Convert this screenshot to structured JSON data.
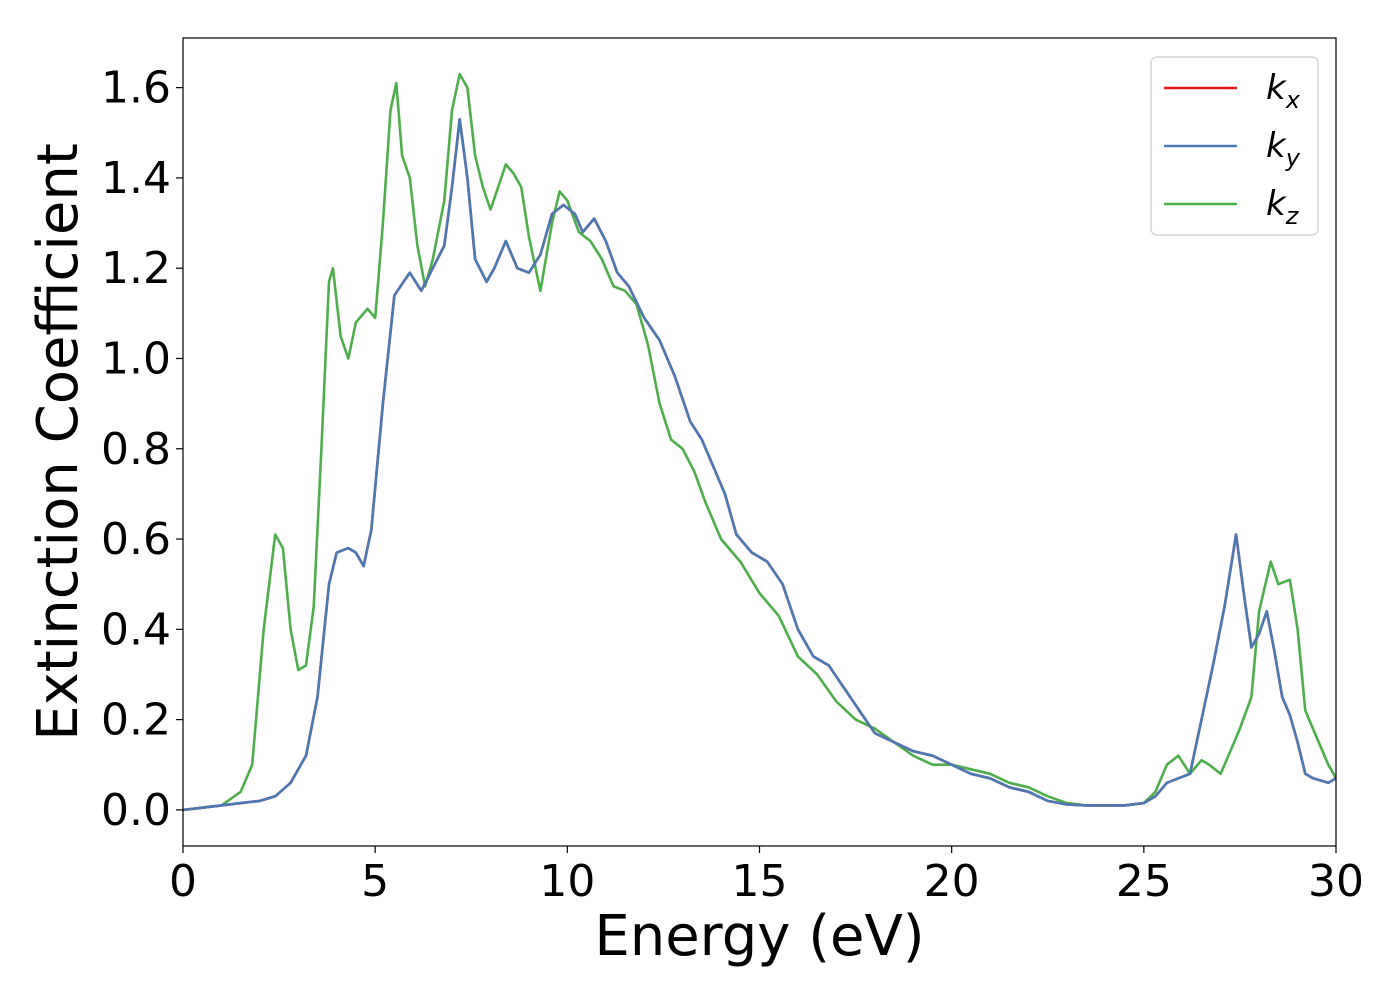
{
  "chart_data": {
    "type": "line",
    "title": "",
    "xlabel": "Energy (eV)",
    "ylabel": "Extinction Coefficient",
    "xlim": [
      0,
      30
    ],
    "ylim": [
      -0.08,
      1.71
    ],
    "xticks": [
      0,
      5,
      10,
      15,
      20,
      25,
      30
    ],
    "xtick_labels": [
      "0",
      "5",
      "10",
      "15",
      "20",
      "25",
      "30"
    ],
    "yticks": [
      0.0,
      0.2,
      0.4,
      0.6,
      0.8,
      1.0,
      1.2,
      1.4,
      1.6
    ],
    "ytick_labels": [
      "0.0",
      "0.2",
      "0.4",
      "0.6",
      "0.8",
      "1.0",
      "1.2",
      "1.4",
      "1.6"
    ],
    "grid": false,
    "legend_position": "top-right",
    "series": [
      {
        "name": "k_x",
        "label_base": "k",
        "label_sub": "x",
        "color": "#e41a1c",
        "x": [
          0,
          1,
          1.5,
          2,
          2.4,
          2.8,
          3.2,
          3.5,
          3.8,
          4.0,
          4.3,
          4.5,
          4.7,
          4.9,
          5.2,
          5.5,
          5.9,
          6.2,
          6.5,
          6.8,
          7.0,
          7.2,
          7.4,
          7.6,
          7.9,
          8.1,
          8.4,
          8.7,
          9.0,
          9.3,
          9.6,
          9.9,
          10.2,
          10.4,
          10.7,
          11.0,
          11.3,
          11.6,
          12.0,
          12.4,
          12.8,
          13.2,
          13.5,
          13.8,
          14.1,
          14.4,
          14.8,
          15.2,
          15.6,
          16.0,
          16.4,
          16.8,
          17.2,
          17.6,
          18.0,
          18.5,
          19.0,
          19.5,
          20.0,
          20.5,
          21.0,
          21.5,
          22.0,
          22.5,
          23.0,
          23.5,
          24.0,
          24.5,
          25.0,
          25.3,
          25.6,
          25.9,
          26.2,
          26.5,
          26.8,
          27.1,
          27.4,
          27.6,
          27.8,
          28.0,
          28.2,
          28.4,
          28.6,
          28.8,
          29.0,
          29.2,
          29.4,
          29.6,
          29.8,
          30
        ],
        "values": [
          0.0,
          0.01,
          0.015,
          0.02,
          0.03,
          0.06,
          0.12,
          0.25,
          0.5,
          0.57,
          0.58,
          0.57,
          0.54,
          0.62,
          0.9,
          1.14,
          1.19,
          1.15,
          1.2,
          1.25,
          1.38,
          1.53,
          1.4,
          1.22,
          1.17,
          1.2,
          1.26,
          1.2,
          1.19,
          1.23,
          1.32,
          1.34,
          1.32,
          1.28,
          1.31,
          1.26,
          1.19,
          1.16,
          1.09,
          1.04,
          0.96,
          0.86,
          0.82,
          0.76,
          0.7,
          0.61,
          0.57,
          0.55,
          0.5,
          0.4,
          0.34,
          0.32,
          0.27,
          0.22,
          0.17,
          0.15,
          0.13,
          0.12,
          0.1,
          0.08,
          0.07,
          0.05,
          0.04,
          0.02,
          0.012,
          0.01,
          0.01,
          0.01,
          0.015,
          0.03,
          0.06,
          0.07,
          0.08,
          0.2,
          0.32,
          0.45,
          0.61,
          0.48,
          0.36,
          0.39,
          0.44,
          0.35,
          0.25,
          0.21,
          0.15,
          0.08,
          0.07,
          0.065,
          0.06,
          0.07
        ]
      },
      {
        "name": "k_y",
        "label_base": "k",
        "label_sub": "y",
        "color": "#4a7ab5",
        "x": [
          0,
          1,
          1.5,
          2,
          2.4,
          2.8,
          3.2,
          3.5,
          3.8,
          4.0,
          4.3,
          4.5,
          4.7,
          4.9,
          5.2,
          5.5,
          5.9,
          6.2,
          6.5,
          6.8,
          7.0,
          7.2,
          7.4,
          7.6,
          7.9,
          8.1,
          8.4,
          8.7,
          9.0,
          9.3,
          9.6,
          9.9,
          10.2,
          10.4,
          10.7,
          11.0,
          11.3,
          11.6,
          12.0,
          12.4,
          12.8,
          13.2,
          13.5,
          13.8,
          14.1,
          14.4,
          14.8,
          15.2,
          15.6,
          16.0,
          16.4,
          16.8,
          17.2,
          17.6,
          18.0,
          18.5,
          19.0,
          19.5,
          20.0,
          20.5,
          21.0,
          21.5,
          22.0,
          22.5,
          23.0,
          23.5,
          24.0,
          24.5,
          25.0,
          25.3,
          25.6,
          25.9,
          26.2,
          26.5,
          26.8,
          27.1,
          27.4,
          27.6,
          27.8,
          28.0,
          28.2,
          28.4,
          28.6,
          28.8,
          29.0,
          29.2,
          29.4,
          29.6,
          29.8,
          30
        ],
        "values": [
          0.0,
          0.01,
          0.015,
          0.02,
          0.03,
          0.06,
          0.12,
          0.25,
          0.5,
          0.57,
          0.58,
          0.57,
          0.54,
          0.62,
          0.9,
          1.14,
          1.19,
          1.15,
          1.2,
          1.25,
          1.38,
          1.53,
          1.4,
          1.22,
          1.17,
          1.2,
          1.26,
          1.2,
          1.19,
          1.23,
          1.32,
          1.34,
          1.32,
          1.28,
          1.31,
          1.26,
          1.19,
          1.16,
          1.09,
          1.04,
          0.96,
          0.86,
          0.82,
          0.76,
          0.7,
          0.61,
          0.57,
          0.55,
          0.5,
          0.4,
          0.34,
          0.32,
          0.27,
          0.22,
          0.17,
          0.15,
          0.13,
          0.12,
          0.1,
          0.08,
          0.07,
          0.05,
          0.04,
          0.02,
          0.012,
          0.01,
          0.01,
          0.01,
          0.015,
          0.03,
          0.06,
          0.07,
          0.08,
          0.2,
          0.32,
          0.45,
          0.61,
          0.48,
          0.36,
          0.39,
          0.44,
          0.35,
          0.25,
          0.21,
          0.15,
          0.08,
          0.07,
          0.065,
          0.06,
          0.07
        ]
      },
      {
        "name": "k_z",
        "label_base": "k",
        "label_sub": "z",
        "color": "#4daf4a",
        "x": [
          0,
          1,
          1.5,
          1.8,
          2.1,
          2.4,
          2.6,
          2.8,
          3.0,
          3.2,
          3.4,
          3.6,
          3.8,
          3.9,
          4.1,
          4.3,
          4.5,
          4.8,
          5.0,
          5.2,
          5.4,
          5.55,
          5.7,
          5.9,
          6.1,
          6.3,
          6.5,
          6.8,
          7.0,
          7.2,
          7.4,
          7.6,
          7.8,
          8.0,
          8.2,
          8.4,
          8.6,
          8.8,
          9.0,
          9.3,
          9.6,
          9.8,
          10.0,
          10.3,
          10.6,
          10.9,
          11.2,
          11.5,
          11.8,
          12.1,
          12.4,
          12.7,
          13.0,
          13.3,
          13.6,
          14.0,
          14.5,
          15.0,
          15.5,
          16.0,
          16.5,
          17.0,
          17.5,
          18.0,
          18.5,
          19.0,
          19.5,
          20.0,
          20.5,
          21.0,
          21.5,
          22.0,
          22.5,
          23.0,
          23.5,
          24.0,
          24.5,
          25.0,
          25.3,
          25.6,
          25.9,
          26.2,
          26.5,
          26.7,
          27.0,
          27.2,
          27.5,
          27.8,
          28.0,
          28.3,
          28.5,
          28.8,
          29.0,
          29.2,
          29.5,
          29.8,
          30
        ],
        "values": [
          0.0,
          0.01,
          0.04,
          0.1,
          0.4,
          0.61,
          0.58,
          0.4,
          0.31,
          0.32,
          0.45,
          0.8,
          1.17,
          1.2,
          1.05,
          1.0,
          1.08,
          1.11,
          1.09,
          1.3,
          1.55,
          1.61,
          1.45,
          1.4,
          1.25,
          1.16,
          1.22,
          1.35,
          1.55,
          1.63,
          1.6,
          1.45,
          1.38,
          1.33,
          1.38,
          1.43,
          1.41,
          1.38,
          1.27,
          1.15,
          1.3,
          1.37,
          1.35,
          1.28,
          1.26,
          1.22,
          1.16,
          1.15,
          1.12,
          1.03,
          0.9,
          0.82,
          0.8,
          0.75,
          0.68,
          0.6,
          0.55,
          0.48,
          0.43,
          0.34,
          0.3,
          0.24,
          0.2,
          0.18,
          0.15,
          0.12,
          0.1,
          0.1,
          0.09,
          0.08,
          0.06,
          0.05,
          0.03,
          0.015,
          0.01,
          0.01,
          0.01,
          0.015,
          0.04,
          0.1,
          0.12,
          0.08,
          0.11,
          0.1,
          0.08,
          0.12,
          0.18,
          0.25,
          0.44,
          0.55,
          0.5,
          0.51,
          0.4,
          0.22,
          0.16,
          0.1,
          0.07
        ]
      }
    ]
  }
}
